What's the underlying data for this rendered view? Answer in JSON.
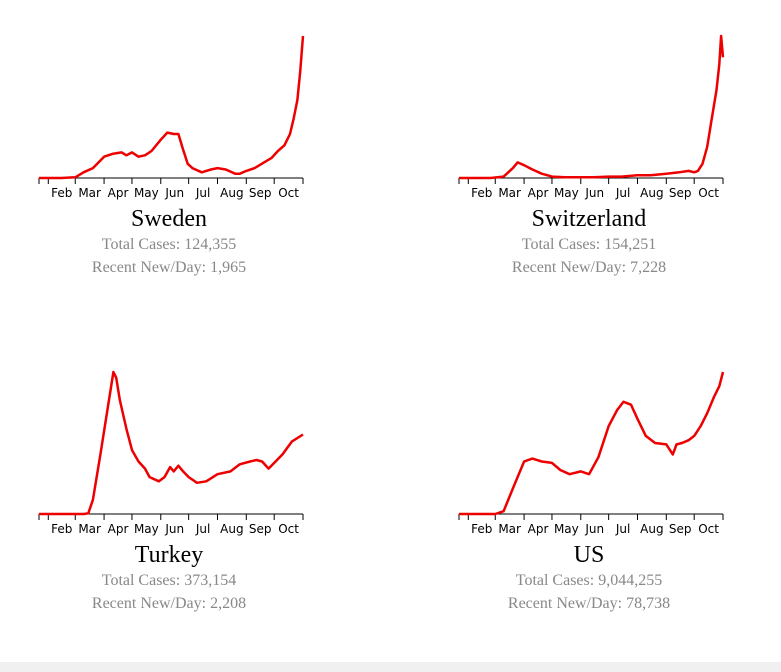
{
  "colors": {
    "line": "#ee0000",
    "axis": "#000000",
    "stat_text": "#888888"
  },
  "months": [
    "Feb",
    "Mar",
    "Apr",
    "May",
    "Jun",
    "Jul",
    "Aug",
    "Sep",
    "Oct"
  ],
  "panels": [
    {
      "country": "Sweden",
      "total": "Total Cases: 124,355",
      "recent": "Recent New/Day: 1,965"
    },
    {
      "country": "Switzerland",
      "total": "Total Cases: 154,251",
      "recent": "Recent New/Day: 7,228"
    },
    {
      "country": "Turkey",
      "total": "Total Cases: 373,154",
      "recent": "Recent New/Day: 2,208"
    },
    {
      "country": "US",
      "total": "Total Cases: 9,044,255",
      "recent": "Recent New/Day: 78,738"
    }
  ],
  "chart_data": [
    {
      "type": "line",
      "title": "Sweden",
      "xlabel": "",
      "ylabel": "",
      "x_ticks": [
        "Feb",
        "Mar",
        "Apr",
        "May",
        "Jun",
        "Jul",
        "Aug",
        "Sep",
        "Oct"
      ],
      "xlim": [
        "2020-01-22",
        "2020-11-01"
      ],
      "ylim": [
        0,
        1
      ],
      "y_scale": "relative to series maximum",
      "series": [
        {
          "x": [
            "2020-01-22",
            "2020-02-15",
            "2020-03-01",
            "2020-03-10",
            "2020-03-20",
            "2020-04-01",
            "2020-04-10",
            "2020-04-20",
            "2020-04-25",
            "2020-05-01",
            "2020-05-08",
            "2020-05-15",
            "2020-05-22",
            "2020-06-01",
            "2020-06-08",
            "2020-06-15",
            "2020-06-20",
            "2020-06-25",
            "2020-06-30",
            "2020-07-05",
            "2020-07-15",
            "2020-07-25",
            "2020-08-01",
            "2020-08-10",
            "2020-08-20",
            "2020-08-25",
            "2020-09-01",
            "2020-09-10",
            "2020-09-20",
            "2020-09-28",
            "2020-10-05",
            "2020-10-12",
            "2020-10-18",
            "2020-10-22",
            "2020-10-26",
            "2020-10-29",
            "2020-11-01"
          ],
          "values": [
            0,
            0,
            0.005,
            0.04,
            0.07,
            0.15,
            0.17,
            0.18,
            0.16,
            0.18,
            0.15,
            0.16,
            0.19,
            0.27,
            0.32,
            0.31,
            0.31,
            0.2,
            0.1,
            0.07,
            0.04,
            0.06,
            0.07,
            0.06,
            0.03,
            0.03,
            0.05,
            0.07,
            0.11,
            0.14,
            0.19,
            0.23,
            0.31,
            0.42,
            0.55,
            0.75,
            1.0
          ]
        }
      ]
    },
    {
      "type": "line",
      "title": "Switzerland",
      "xlabel": "",
      "ylabel": "",
      "x_ticks": [
        "Feb",
        "Mar",
        "Apr",
        "May",
        "Jun",
        "Jul",
        "Aug",
        "Sep",
        "Oct"
      ],
      "xlim": [
        "2020-01-22",
        "2020-11-01"
      ],
      "ylim": [
        0,
        1
      ],
      "y_scale": "relative to series maximum",
      "series": [
        {
          "x": [
            "2020-01-22",
            "2020-02-25",
            "2020-03-10",
            "2020-03-20",
            "2020-03-25",
            "2020-04-01",
            "2020-04-10",
            "2020-04-20",
            "2020-05-01",
            "2020-05-15",
            "2020-06-01",
            "2020-06-15",
            "2020-07-01",
            "2020-07-15",
            "2020-08-01",
            "2020-08-15",
            "2020-09-01",
            "2020-09-15",
            "2020-09-25",
            "2020-10-01",
            "2020-10-05",
            "2020-10-10",
            "2020-10-15",
            "2020-10-20",
            "2020-10-25",
            "2020-10-28",
            "2020-10-30",
            "2020-11-01"
          ],
          "values": [
            0,
            0,
            0.01,
            0.07,
            0.11,
            0.09,
            0.06,
            0.03,
            0.01,
            0.005,
            0.005,
            0.005,
            0.01,
            0.01,
            0.02,
            0.02,
            0.03,
            0.04,
            0.05,
            0.04,
            0.05,
            0.1,
            0.22,
            0.42,
            0.62,
            0.8,
            1.0,
            0.85
          ]
        }
      ]
    },
    {
      "type": "line",
      "title": "Turkey",
      "xlabel": "",
      "ylabel": "",
      "x_ticks": [
        "Feb",
        "Mar",
        "Apr",
        "May",
        "Jun",
        "Jul",
        "Aug",
        "Sep",
        "Oct"
      ],
      "xlim": [
        "2020-01-22",
        "2020-11-01"
      ],
      "ylim": [
        0,
        1
      ],
      "y_scale": "relative to series maximum",
      "series": [
        {
          "x": [
            "2020-01-22",
            "2020-03-10",
            "2020-03-15",
            "2020-03-20",
            "2020-03-28",
            "2020-04-05",
            "2020-04-11",
            "2020-04-14",
            "2020-04-18",
            "2020-04-25",
            "2020-05-01",
            "2020-05-08",
            "2020-05-15",
            "2020-05-20",
            "2020-05-30",
            "2020-06-05",
            "2020-06-11",
            "2020-06-15",
            "2020-06-20",
            "2020-06-25",
            "2020-07-01",
            "2020-07-10",
            "2020-07-20",
            "2020-08-01",
            "2020-08-15",
            "2020-08-25",
            "2020-09-05",
            "2020-09-12",
            "2020-09-18",
            "2020-09-25",
            "2020-10-01",
            "2020-10-10",
            "2020-10-20",
            "2020-11-01"
          ],
          "values": [
            0,
            0,
            0.005,
            0.1,
            0.42,
            0.75,
            1.0,
            0.96,
            0.8,
            0.6,
            0.45,
            0.37,
            0.32,
            0.26,
            0.23,
            0.26,
            0.33,
            0.3,
            0.34,
            0.3,
            0.26,
            0.22,
            0.23,
            0.28,
            0.3,
            0.35,
            0.37,
            0.38,
            0.37,
            0.32,
            0.36,
            0.42,
            0.51,
            0.56
          ]
        }
      ]
    },
    {
      "type": "line",
      "title": "US",
      "xlabel": "",
      "ylabel": "",
      "x_ticks": [
        "Feb",
        "Mar",
        "Apr",
        "May",
        "Jun",
        "Jul",
        "Aug",
        "Sep",
        "Oct"
      ],
      "xlim": [
        "2020-01-22",
        "2020-11-01"
      ],
      "ylim": [
        0,
        1
      ],
      "y_scale": "relative to series maximum",
      "series": [
        {
          "x": [
            "2020-01-22",
            "2020-03-01",
            "2020-03-10",
            "2020-03-20",
            "2020-04-01",
            "2020-04-10",
            "2020-04-20",
            "2020-05-01",
            "2020-05-10",
            "2020-05-20",
            "2020-06-01",
            "2020-06-10",
            "2020-06-20",
            "2020-07-01",
            "2020-07-10",
            "2020-07-17",
            "2020-07-25",
            "2020-08-01",
            "2020-08-10",
            "2020-08-20",
            "2020-09-01",
            "2020-09-08",
            "2020-09-12",
            "2020-09-18",
            "2020-09-25",
            "2020-10-01",
            "2020-10-08",
            "2020-10-15",
            "2020-10-22",
            "2020-10-28",
            "2020-11-01"
          ],
          "values": [
            0,
            0,
            0.02,
            0.18,
            0.37,
            0.39,
            0.37,
            0.36,
            0.31,
            0.28,
            0.3,
            0.28,
            0.4,
            0.62,
            0.73,
            0.79,
            0.77,
            0.67,
            0.55,
            0.5,
            0.49,
            0.42,
            0.49,
            0.5,
            0.52,
            0.55,
            0.62,
            0.71,
            0.82,
            0.9,
            1.0
          ]
        }
      ]
    }
  ]
}
